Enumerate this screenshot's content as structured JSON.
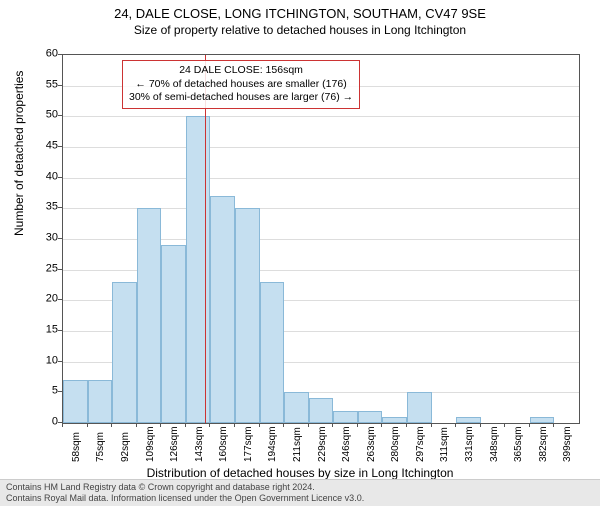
{
  "title": "24, DALE CLOSE, LONG ITCHINGTON, SOUTHAM, CV47 9SE",
  "subtitle": "Size of property relative to detached houses in Long Itchington",
  "ylabel": "Number of detached properties",
  "xlabel": "Distribution of detached houses by size in Long Itchington",
  "chart": {
    "type": "bar",
    "background_color": "#ffffff",
    "grid_color": "#dddddd",
    "bar_fill": "#c5dff0",
    "bar_stroke": "#8ab9d8",
    "ref_line_color": "#cc3333",
    "ymin": 0,
    "ymax": 60,
    "ytick_step": 5,
    "xticks": [
      "58sqm",
      "75sqm",
      "92sqm",
      "109sqm",
      "126sqm",
      "143sqm",
      "160sqm",
      "177sqm",
      "194sqm",
      "211sqm",
      "229sqm",
      "246sqm",
      "263sqm",
      "280sqm",
      "297sqm",
      "311sqm",
      "331sqm",
      "348sqm",
      "365sqm",
      "382sqm",
      "399sqm"
    ],
    "values": [
      7,
      7,
      23,
      35,
      29,
      50,
      37,
      35,
      23,
      5,
      4,
      2,
      2,
      1,
      5,
      0,
      1,
      0,
      0,
      1,
      0
    ],
    "ref_index": 6,
    "ref_value": 156
  },
  "legend": {
    "line1": "24 DALE CLOSE: 156sqm",
    "line2": "← 70% of detached houses are smaller (176)",
    "line3": "30% of semi-detached houses are larger (76) →"
  },
  "footer": {
    "line1": "Contains HM Land Registry data © Crown copyright and database right 2024.",
    "line2": "Contains Royal Mail data. Information licensed under the Open Government Licence v3.0."
  }
}
